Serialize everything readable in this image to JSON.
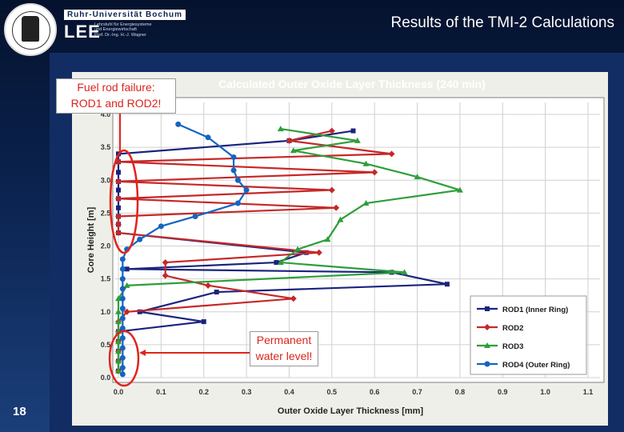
{
  "header": {
    "title": "Results of the TMI-2 Calculations",
    "university": "Ruhr-Universität Bochum",
    "logo": "LEE",
    "chair_lines": [
      "Lehrstuhl für Energiesysteme",
      "und Energiewirtschaft",
      "Prof. Dr.-Ing. H.-J. Wagner"
    ]
  },
  "slide_number": "18",
  "annotations": {
    "fuel_failure_line1": "Fuel rod failure:",
    "fuel_failure_line2": "ROD1 and ROD2!",
    "water_line1": "Permanent",
    "water_line2": "water level!"
  },
  "colors": {
    "callout_text": "#d9261c",
    "ellipse": "#e0241c",
    "arrow": "#e0241c"
  },
  "chart_data": {
    "type": "line",
    "title": "Calculated Outer Oxide Layer Thickness (240 min)",
    "xlabel": "Outer Oxide Layer Thickness [mm]",
    "ylabel": "Core Height [m]",
    "xlim": [
      0.0,
      1.1
    ],
    "ylim": [
      0.0,
      4.0
    ],
    "x_ticks": [
      "0.0",
      "0.1",
      "0.2",
      "0.3",
      "0.4",
      "0.5",
      "0.6",
      "0.7",
      "0.8",
      "0.9",
      "1.0",
      "1.1"
    ],
    "y_ticks": [
      "0.0",
      "0.5",
      "1.0",
      "1.5",
      "2.0",
      "2.5",
      "3.0",
      "3.5",
      "4.0"
    ],
    "grid": true,
    "legend_position": "bottom-right",
    "series": [
      {
        "name": "ROD1 (Inner Ring)",
        "color": "#1a237e",
        "marker": "square",
        "points": [
          [
            0.55,
            3.75
          ],
          [
            0.4,
            3.6
          ],
          [
            0.0,
            3.4
          ],
          [
            0.0,
            3.28
          ],
          [
            0.0,
            3.12
          ],
          [
            0.0,
            2.98
          ],
          [
            0.0,
            2.85
          ],
          [
            0.0,
            2.72
          ],
          [
            0.0,
            2.58
          ],
          [
            0.0,
            2.45
          ],
          [
            0.0,
            2.33
          ],
          [
            0.0,
            2.2
          ],
          [
            0.44,
            1.9
          ],
          [
            0.37,
            1.75
          ],
          [
            0.02,
            1.65
          ],
          [
            0.64,
            1.6
          ],
          [
            0.77,
            1.42
          ],
          [
            0.23,
            1.3
          ],
          [
            0.05,
            1.0
          ],
          [
            0.2,
            0.85
          ],
          [
            0.0,
            0.7
          ],
          [
            0.0,
            0.55
          ],
          [
            0.0,
            0.4
          ],
          [
            0.0,
            0.25
          ],
          [
            0.0,
            0.1
          ]
        ]
      },
      {
        "name": "ROD2",
        "color": "#c62828",
        "marker": "diamond",
        "points": [
          [
            0.5,
            3.75
          ],
          [
            0.4,
            3.6
          ],
          [
            0.64,
            3.4
          ],
          [
            0.0,
            3.28
          ],
          [
            0.6,
            3.12
          ],
          [
            0.0,
            2.98
          ],
          [
            0.5,
            2.85
          ],
          [
            0.0,
            2.72
          ],
          [
            0.51,
            2.58
          ],
          [
            0.0,
            2.45
          ],
          [
            0.0,
            2.33
          ],
          [
            0.0,
            2.2
          ],
          [
            0.47,
            1.9
          ],
          [
            0.11,
            1.75
          ],
          [
            0.11,
            1.55
          ],
          [
            0.21,
            1.4
          ],
          [
            0.41,
            1.2
          ],
          [
            0.02,
            1.0
          ],
          [
            0.0,
            0.85
          ],
          [
            0.0,
            0.7
          ],
          [
            0.0,
            0.55
          ],
          [
            0.0,
            0.4
          ],
          [
            0.0,
            0.25
          ],
          [
            0.0,
            0.1
          ]
        ]
      },
      {
        "name": "ROD3",
        "color": "#2e9e3a",
        "marker": "triangle",
        "points": [
          [
            0.38,
            3.78
          ],
          [
            0.56,
            3.6
          ],
          [
            0.41,
            3.45
          ],
          [
            0.58,
            3.25
          ],
          [
            0.7,
            3.05
          ],
          [
            0.8,
            2.85
          ],
          [
            0.58,
            2.65
          ],
          [
            0.52,
            2.4
          ],
          [
            0.49,
            2.1
          ],
          [
            0.42,
            1.95
          ],
          [
            0.38,
            1.75
          ],
          [
            0.67,
            1.6
          ],
          [
            0.02,
            1.4
          ],
          [
            0.0,
            1.2
          ],
          [
            0.0,
            1.0
          ],
          [
            0.0,
            0.85
          ],
          [
            0.0,
            0.7
          ],
          [
            0.0,
            0.55
          ],
          [
            0.0,
            0.4
          ],
          [
            0.0,
            0.25
          ],
          [
            0.0,
            0.1
          ]
        ]
      },
      {
        "name": "ROD4 (Outer Ring)",
        "color": "#1565c0",
        "marker": "circle",
        "points": [
          [
            0.14,
            3.85
          ],
          [
            0.21,
            3.65
          ],
          [
            0.27,
            3.35
          ],
          [
            0.27,
            3.15
          ],
          [
            0.28,
            3.0
          ],
          [
            0.3,
            2.85
          ],
          [
            0.28,
            2.65
          ],
          [
            0.18,
            2.45
          ],
          [
            0.1,
            2.3
          ],
          [
            0.05,
            2.1
          ],
          [
            0.02,
            1.95
          ],
          [
            0.01,
            1.8
          ],
          [
            0.01,
            1.65
          ],
          [
            0.01,
            1.5
          ],
          [
            0.01,
            1.35
          ],
          [
            0.01,
            1.2
          ],
          [
            0.01,
            1.05
          ],
          [
            0.01,
            0.9
          ],
          [
            0.01,
            0.75
          ],
          [
            0.01,
            0.6
          ],
          [
            0.01,
            0.45
          ],
          [
            0.01,
            0.3
          ],
          [
            0.01,
            0.15
          ],
          [
            0.01,
            0.05
          ]
        ]
      }
    ]
  }
}
